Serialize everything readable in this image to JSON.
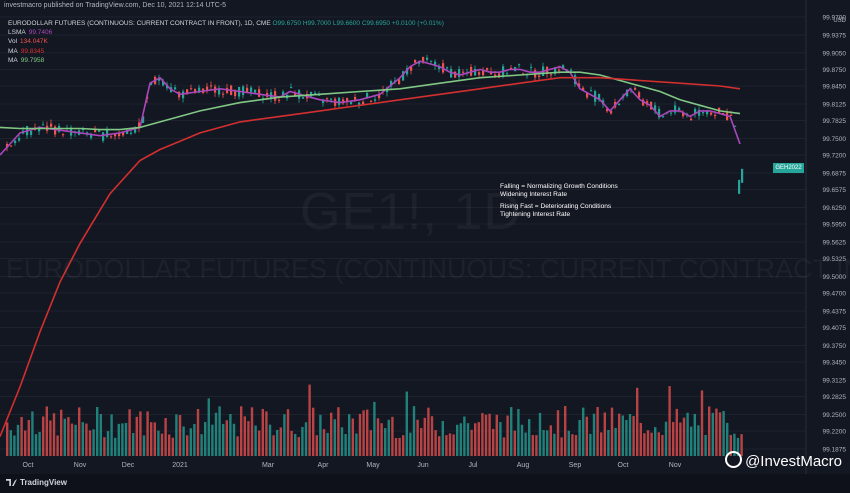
{
  "header": {
    "published": "investmacro published on TradingView.com, Dec 10, 2021 12:14 UTC-5",
    "title": "EURODOLLAR FUTURES (CONTINUOUS: CURRENT CONTRACT IN FRONT), 1D, CME",
    "ohlc": {
      "o": "O99.6750",
      "h": "H99.7000",
      "l": "L99.6600",
      "c": "C99.6950",
      "chg": "+0.0100 (+0.01%)"
    }
  },
  "legend": [
    {
      "label": "LSMA",
      "value": "99.7406",
      "color": "#ab47bc"
    },
    {
      "label": "Vol",
      "value": "134.047K",
      "color": "#ef5350"
    },
    {
      "label": "MA",
      "value": "99.8345",
      "color": "#d32f2f"
    },
    {
      "label": "MA",
      "value": "99.7958",
      "color": "#81c784"
    }
  ],
  "watermark": {
    "symbol": "GE1!, 1D",
    "name": "EURODOLLAR FUTURES (CONTINUOUS: CURRENT CONTRACT IN FRONT)"
  },
  "annotations": {
    "line1": "Falling = Normalizing Growth Conditions",
    "line2": "Widening Interest Rate",
    "line3": "Rising Fast = Deteriorating Conditions",
    "line4": "Tightening Interest Rate"
  },
  "price_tag": "GEH2022",
  "footer": {
    "tv": "TradingView",
    "brand": "@InvestMacro"
  },
  "colors": {
    "up": "#26a69a",
    "down": "#ef5350",
    "lsma": "#ab47bc",
    "ma_long": "#d32f2f",
    "ma_short": "#81c784",
    "bg": "#131722"
  },
  "chart_data": {
    "type": "line",
    "currency": "USD",
    "y_ticks": [
      "99.9700",
      "99.9375",
      "99.9050",
      "99.8750",
      "99.8450",
      "99.8125",
      "99.7825",
      "99.7500",
      "99.7200",
      "99.6875",
      "99.6575",
      "99.6250",
      "99.5950",
      "99.5625",
      "99.5325",
      "99.5000",
      "99.4700",
      "99.4375",
      "99.4075",
      "99.3750",
      "99.3450",
      "99.3125",
      "99.2825",
      "99.2500",
      "99.2200",
      "99.1875"
    ],
    "ylim": [
      99.1875,
      99.97
    ],
    "x_labels": [
      "Oct",
      "Nov",
      "Dec",
      "2021",
      "Mar",
      "Apr",
      "May",
      "Jun",
      "Jul",
      "Aug",
      "Sep",
      "Oct",
      "Nov"
    ],
    "series": [
      {
        "name": "LSMA",
        "x": [
          0,
          10,
          20,
          40,
          60,
          80,
          100,
          120,
          140,
          150,
          160,
          170,
          180,
          200,
          220,
          240,
          260,
          280,
          290,
          300,
          310,
          320,
          340,
          360,
          380,
          400,
          410,
          420,
          430,
          440,
          450,
          460,
          470,
          480,
          490,
          500,
          510,
          520,
          530,
          540,
          550,
          560,
          570,
          580,
          590,
          600,
          610,
          620,
          630,
          640,
          650,
          660,
          670,
          680,
          690,
          700,
          710,
          720,
          730,
          740
        ],
        "y": [
          99.72,
          99.74,
          99.76,
          99.77,
          99.765,
          99.76,
          99.755,
          99.76,
          99.77,
          99.85,
          99.86,
          99.84,
          99.83,
          99.835,
          99.84,
          99.835,
          99.83,
          99.825,
          99.835,
          99.83,
          99.825,
          99.82,
          99.815,
          99.82,
          99.83,
          99.86,
          99.88,
          99.89,
          99.885,
          99.88,
          99.87,
          99.865,
          99.87,
          99.875,
          99.87,
          99.87,
          99.875,
          99.875,
          99.87,
          99.87,
          99.875,
          99.88,
          99.87,
          99.84,
          99.83,
          99.82,
          99.8,
          99.82,
          99.84,
          99.82,
          99.81,
          99.79,
          99.8,
          99.8,
          99.79,
          99.8,
          99.8,
          99.795,
          99.79,
          99.74
        ]
      },
      {
        "name": "MA",
        "x": [
          0,
          20,
          40,
          60,
          80,
          100,
          120,
          140,
          160,
          180,
          200,
          240,
          280,
          320,
          360,
          400,
          440,
          480,
          520,
          560,
          580,
          600,
          620,
          640,
          660,
          680,
          700,
          720,
          740
        ],
        "y": [
          99.77,
          99.768,
          99.768,
          99.768,
          99.768,
          99.766,
          99.766,
          99.77,
          99.78,
          99.79,
          99.8,
          99.815,
          99.825,
          99.83,
          99.835,
          99.84,
          99.85,
          99.86,
          99.865,
          99.87,
          99.87,
          99.865,
          99.855,
          99.845,
          99.835,
          99.82,
          99.81,
          99.8,
          99.795
        ]
      },
      {
        "name": "MA",
        "x": [
          0,
          20,
          40,
          60,
          80,
          100,
          110,
          120,
          130,
          140,
          150,
          160,
          180,
          200,
          220,
          240,
          280,
          320,
          360,
          400,
          440,
          480,
          520,
          560,
          600,
          640,
          680,
          720,
          740
        ],
        "y": [
          99.21,
          99.3,
          99.4,
          99.49,
          99.56,
          99.62,
          99.65,
          99.67,
          99.69,
          99.71,
          99.72,
          99.73,
          99.745,
          99.76,
          99.77,
          99.78,
          99.79,
          99.8,
          99.81,
          99.82,
          99.83,
          99.84,
          99.85,
          99.86,
          99.86,
          99.855,
          99.85,
          99.845,
          99.84
        ]
      }
    ],
    "last_candles": [
      {
        "x": 738,
        "y": 99.675
      },
      {
        "x": 741,
        "y": 99.695
      }
    ]
  }
}
